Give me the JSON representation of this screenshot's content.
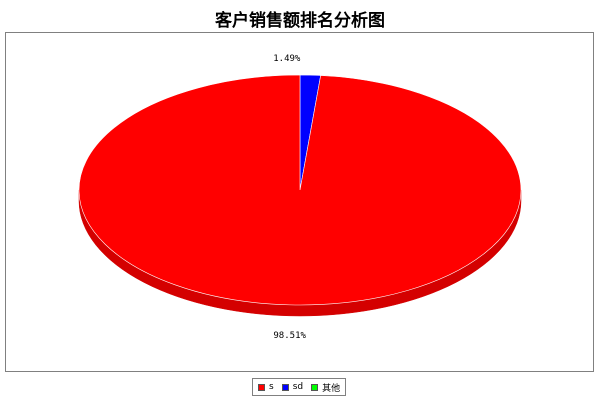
{
  "chart_data": {
    "type": "pie",
    "title": "客户销售额排名分析图",
    "slices": [
      {
        "name": "s",
        "value": 98.51,
        "label": "98.51%",
        "color": "#ff0000",
        "side_color": "#d40000"
      },
      {
        "name": "sd",
        "value": 1.49,
        "label": "1.49%",
        "color": "#0000ff",
        "side_color": "#0000b0"
      },
      {
        "name": "其他",
        "value": 0,
        "label": "",
        "color": "#00ff00",
        "side_color": "#00b000"
      }
    ],
    "legend": {
      "position": "bottom"
    }
  }
}
